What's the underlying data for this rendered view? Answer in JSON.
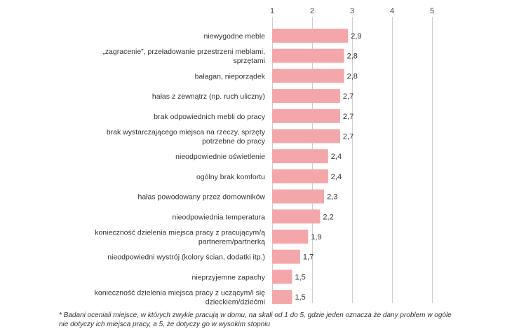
{
  "chart_data": {
    "type": "bar",
    "orientation": "horizontal",
    "xlim": [
      1,
      5
    ],
    "xticks": [
      "1",
      "2",
      "3",
      "4",
      "5"
    ],
    "grid": true,
    "bar_color": "#f4a7aa",
    "categories": [
      [
        "niewygodne meble"
      ],
      [
        "„zagracenie”, przeładowanie przestrzeni meblami,",
        "sprzętami"
      ],
      [
        "bałagan, nieporządek"
      ],
      [
        "hałas z zewnątrz (np. ruch uliczny)"
      ],
      [
        "brak odpowiednich mebli do pracy"
      ],
      [
        "brak wystarczającego miejsca na rzeczy, sprzęty",
        "potrzebne do pracy"
      ],
      [
        "nieodpowiednie oświetlenie"
      ],
      [
        "ogólny brak komfortu"
      ],
      [
        "hałas powodowany przez domowników"
      ],
      [
        "nieodpowiednia temperatura"
      ],
      [
        "konieczność dzielenia miejsca pracy z pracującym/ą",
        "partnerem/partnerką"
      ],
      [
        "nieodpowiedni wystrój (kolory ścian, dodatki itp.)"
      ],
      [
        "nieprzyjemne zapachy"
      ],
      [
        "konieczność dzielenia miejsca pracy z uczącym/i się",
        "dzieckiem/dziećmi"
      ]
    ],
    "values": [
      2.9,
      2.8,
      2.8,
      2.7,
      2.7,
      2.7,
      2.4,
      2.4,
      2.3,
      2.2,
      1.9,
      1.7,
      1.5,
      1.5
    ],
    "value_labels": [
      "2,9",
      "2,8",
      "2,8",
      "2,7",
      "2,7",
      "2,7",
      "2,4",
      "2,4",
      "2,3",
      "2,2",
      "1,9",
      "1,7",
      "1,5",
      "1,5"
    ]
  },
  "footnote": "* Badani oceniali miejsce, w których zwykle pracują w domu, na skali od 1 do 5, gdzie jeden oznacza że dany problem w ogóle nie dotyczy ich miejsca pracy, a 5, że dotyczy go w wysokim stopniu"
}
